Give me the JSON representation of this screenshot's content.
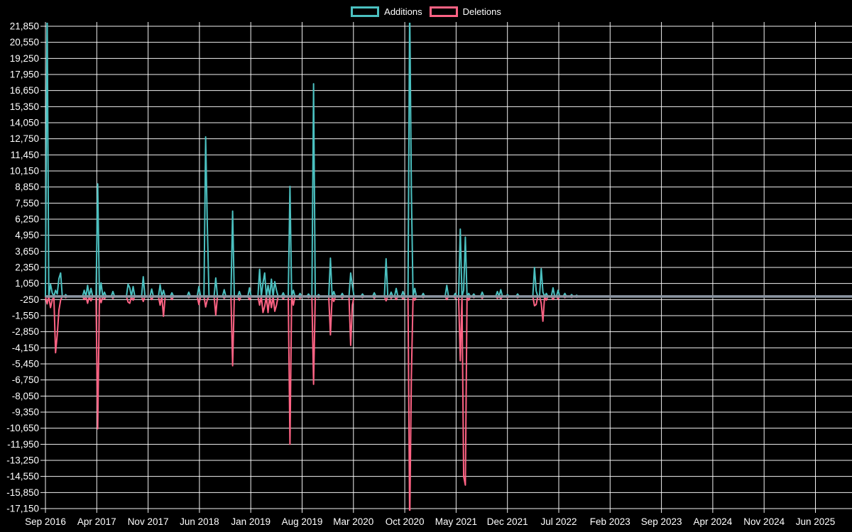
{
  "page": {
    "background": "#000000"
  },
  "chart_data": {
    "type": "line",
    "title": "",
    "description": "Weekly code additions and deletions over time (code-frequency chart)",
    "legend_position": "top",
    "series": [
      {
        "name": "Additions",
        "color": "#4bc0c0"
      },
      {
        "name": "Deletions",
        "color": "#ff6384"
      }
    ],
    "grid": {
      "on": true,
      "color": "#ffffff",
      "zero_line_color": "#8b95a1",
      "background": "#000000"
    },
    "x_axis": {
      "tick_labels": [
        "Sep 2016",
        "Apr 2017",
        "Nov 2017",
        "Jun 2018",
        "Jan 2019",
        "Aug 2019",
        "Mar 2020",
        "Oct 2020",
        "May 2021",
        "Dec 2021",
        "Jul 2022",
        "Feb 2023",
        "Sep 2023",
        "Apr 2024",
        "Nov 2024",
        "Jun 2025"
      ],
      "months_per_tick": 7,
      "weeks_per_tick": 30.44
    },
    "y_axis": {
      "tick_max": 21850,
      "tick_min": -17150,
      "tick_step": 1300,
      "tick_labels": [
        "21,850",
        "20,550",
        "19,250",
        "17,950",
        "16,650",
        "15,350",
        "14,050",
        "12,750",
        "11,450",
        "10,150",
        "8,850",
        "7,550",
        "6,250",
        "4,950",
        "3,650",
        "2,350",
        "1,050",
        "-250",
        "-1,550",
        "-2,850",
        "-4,150",
        "-5,450",
        "-6,750",
        "-8,050",
        "-9,350",
        "-10,650",
        "-11,950",
        "-13,250",
        "-14,550",
        "-15,850",
        "-17,150"
      ]
    },
    "ylim": [
      -17150,
      21850
    ],
    "data_end_week": 320,
    "points_sparse_format": [
      "week_index_from_Sep_2016",
      "additions",
      "deletions"
    ],
    "points_sparse": [
      [
        1,
        23500,
        -600
      ],
      [
        3,
        1000,
        -900
      ],
      [
        4,
        300,
        -300
      ],
      [
        6,
        500,
        -4550
      ],
      [
        7,
        200,
        -3100
      ],
      [
        8,
        1450,
        -1100
      ],
      [
        9,
        1900,
        -300
      ],
      [
        12,
        150,
        -100
      ],
      [
        23,
        500,
        -250
      ],
      [
        25,
        900,
        -550
      ],
      [
        27,
        650,
        -350
      ],
      [
        31,
        9100,
        -10700
      ],
      [
        33,
        1100,
        -500
      ],
      [
        35,
        350,
        -200
      ],
      [
        40,
        400,
        -150
      ],
      [
        49,
        1000,
        -450
      ],
      [
        50,
        700,
        -550
      ],
      [
        52,
        800,
        -300
      ],
      [
        58,
        1600,
        -400
      ],
      [
        63,
        600,
        -250
      ],
      [
        68,
        950,
        -700
      ],
      [
        70,
        500,
        -1600
      ],
      [
        75,
        300,
        -250
      ],
      [
        85,
        350,
        -100
      ],
      [
        91,
        800,
        -650
      ],
      [
        95,
        12900,
        -850
      ],
      [
        96,
        5700,
        -250
      ],
      [
        101,
        1500,
        -1500
      ],
      [
        106,
        550,
        -150
      ],
      [
        111,
        6900,
        -5600
      ],
      [
        115,
        400,
        -300
      ],
      [
        121,
        700,
        -250
      ],
      [
        127,
        2200,
        -700
      ],
      [
        129,
        1100,
        -1300
      ],
      [
        130,
        1900,
        -800
      ],
      [
        132,
        900,
        -1300
      ],
      [
        134,
        1400,
        -900
      ],
      [
        136,
        1200,
        -1200
      ],
      [
        137,
        500,
        -700
      ],
      [
        141,
        300,
        -200
      ],
      [
        145,
        8900,
        -11950
      ],
      [
        147,
        500,
        -700
      ],
      [
        151,
        250,
        -150
      ],
      [
        156,
        200,
        -100
      ],
      [
        159,
        17200,
        -7100
      ],
      [
        162,
        150,
        -100
      ],
      [
        169,
        3100,
        -3100
      ],
      [
        171,
        400,
        -400
      ],
      [
        176,
        250,
        -150
      ],
      [
        181,
        1900,
        -3950
      ],
      [
        182,
        900,
        -700
      ],
      [
        188,
        200,
        -100
      ],
      [
        195,
        300,
        -150
      ],
      [
        202,
        3050,
        -350
      ],
      [
        205,
        350,
        -150
      ],
      [
        208,
        650,
        -250
      ],
      [
        212,
        400,
        -200
      ],
      [
        216,
        23500,
        -18500
      ],
      [
        217,
        8400,
        -6400
      ],
      [
        219,
        650,
        -300
      ],
      [
        224,
        250,
        -100
      ],
      [
        238,
        900,
        -250
      ],
      [
        243,
        250,
        -150
      ],
      [
        246,
        5450,
        -5200
      ],
      [
        248,
        500,
        -14550
      ],
      [
        249,
        4800,
        -15250
      ],
      [
        251,
        250,
        -300
      ],
      [
        254,
        200,
        -100
      ],
      [
        259,
        350,
        -150
      ],
      [
        268,
        400,
        -150
      ],
      [
        270,
        550,
        -200
      ],
      [
        274,
        150,
        -100
      ],
      [
        280,
        200,
        -100
      ],
      [
        290,
        2350,
        -750
      ],
      [
        291,
        450,
        -650
      ],
      [
        294,
        2250,
        -550
      ],
      [
        295,
        350,
        -2000
      ],
      [
        297,
        250,
        -300
      ],
      [
        301,
        700,
        -250
      ],
      [
        304,
        500,
        -200
      ],
      [
        308,
        250,
        -100
      ],
      [
        312,
        150,
        -80
      ],
      [
        315,
        100,
        -60
      ]
    ]
  }
}
